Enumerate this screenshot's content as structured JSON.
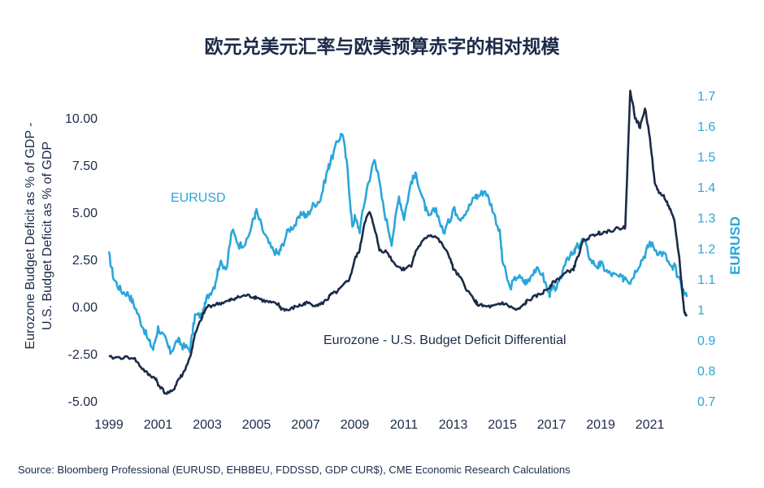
{
  "chart_data": {
    "type": "line",
    "title": "欧元兑美元汇率与欧美预算赤字的相对规模",
    "ylabel_left": [
      "Eurozone Budget Deficit as % of GDP -",
      "U.S. Budget Deficit as % of GDP"
    ],
    "ylabel_right": "EURUSD",
    "source": "Source: Bloomberg Professional (EURUSD, EHBBEU, FDDSSD, GDP CUR$), CME Economic Research Calculations",
    "x_ticks": [
      "1999",
      "2001",
      "2003",
      "2005",
      "2007",
      "2009",
      "2011",
      "2013",
      "2015",
      "2017",
      "2019",
      "2021"
    ],
    "xlim": [
      1999,
      2022.6
    ],
    "y_left_ticks": [
      "10.00",
      "7.50",
      "5.00",
      "2.50",
      "0.00",
      "-2.50",
      "-5.00"
    ],
    "y_left_ticks_values": [
      10,
      7.5,
      5,
      2.5,
      0,
      -2.5,
      -5
    ],
    "ylim_left": [
      -5,
      11.5
    ],
    "y_right_ticks": [
      "1.7",
      "1.6",
      "1.5",
      "1.4",
      "1.3",
      "1.2",
      "1.1",
      "1",
      "0.9",
      "0.8",
      "0.7"
    ],
    "y_right_ticks_values": [
      1.7,
      1.6,
      1.5,
      1.4,
      1.3,
      1.2,
      1.1,
      1.0,
      0.9,
      0.8,
      0.7
    ],
    "ylim_right": [
      0.7,
      1.72
    ],
    "colors": {
      "eurusd": "#2aa6d9",
      "deficit": "#1b2b48"
    },
    "series": [
      {
        "name": "EURUSD",
        "axis": "right",
        "x": [
          1999.0,
          1999.2,
          1999.5,
          1999.8,
          2000.0,
          2000.3,
          2000.6,
          2000.8,
          2001.0,
          2001.3,
          2001.5,
          2001.8,
          2002.0,
          2002.3,
          2002.5,
          2002.8,
          2003.0,
          2003.3,
          2003.5,
          2003.8,
          2004.0,
          2004.3,
          2004.6,
          2004.9,
          2005.0,
          2005.3,
          2005.6,
          2005.9,
          2006.0,
          2006.3,
          2006.6,
          2006.9,
          2007.0,
          2007.3,
          2007.6,
          2007.9,
          2008.0,
          2008.3,
          2008.5,
          2008.7,
          2008.9,
          2009.0,
          2009.2,
          2009.5,
          2009.8,
          2009.9,
          2010.2,
          2010.5,
          2010.8,
          2011.0,
          2011.3,
          2011.5,
          2011.8,
          2012.0,
          2012.3,
          2012.6,
          2012.9,
          2013.0,
          2013.3,
          2013.6,
          2013.9,
          2014.0,
          2014.3,
          2014.6,
          2014.9,
          2015.0,
          2015.3,
          2015.6,
          2015.9,
          2016.0,
          2016.3,
          2016.6,
          2016.9,
          2017.0,
          2017.3,
          2017.6,
          2017.9,
          2018.0,
          2018.3,
          2018.6,
          2018.9,
          2019.0,
          2019.3,
          2019.6,
          2019.9,
          2020.0,
          2020.2,
          2020.5,
          2020.8,
          2021.0,
          2021.3,
          2021.6,
          2021.9,
          2022.0,
          2022.3,
          2022.5
        ],
        "values": [
          1.18,
          1.1,
          1.06,
          1.05,
          1.02,
          0.96,
          0.9,
          0.87,
          0.94,
          0.9,
          0.86,
          0.9,
          0.88,
          0.87,
          0.98,
          0.98,
          1.04,
          1.08,
          1.15,
          1.14,
          1.26,
          1.21,
          1.22,
          1.3,
          1.32,
          1.25,
          1.2,
          1.18,
          1.2,
          1.26,
          1.28,
          1.32,
          1.3,
          1.34,
          1.36,
          1.46,
          1.48,
          1.55,
          1.58,
          1.46,
          1.27,
          1.3,
          1.26,
          1.4,
          1.49,
          1.46,
          1.32,
          1.22,
          1.37,
          1.3,
          1.42,
          1.44,
          1.35,
          1.3,
          1.33,
          1.25,
          1.3,
          1.33,
          1.3,
          1.33,
          1.37,
          1.37,
          1.39,
          1.33,
          1.25,
          1.16,
          1.07,
          1.11,
          1.09,
          1.09,
          1.13,
          1.12,
          1.05,
          1.06,
          1.08,
          1.17,
          1.18,
          1.2,
          1.23,
          1.16,
          1.14,
          1.15,
          1.12,
          1.11,
          1.1,
          1.11,
          1.09,
          1.14,
          1.18,
          1.22,
          1.19,
          1.18,
          1.13,
          1.14,
          1.07,
          1.04
        ]
      },
      {
        "name": "Eurozone - U.S. Budget Deficit Differential",
        "axis": "left",
        "x": [
          1999.0,
          1999.5,
          2000.0,
          2000.3,
          2000.6,
          2000.9,
          2001.0,
          2001.3,
          2001.6,
          2001.8,
          2002.0,
          2002.3,
          2002.5,
          2002.8,
          2003.0,
          2003.3,
          2003.6,
          2003.9,
          2004.0,
          2004.3,
          2004.6,
          2004.9,
          2005.0,
          2005.3,
          2005.6,
          2005.9,
          2006.0,
          2006.3,
          2006.6,
          2006.9,
          2007.0,
          2007.3,
          2007.6,
          2007.9,
          2008.0,
          2008.3,
          2008.6,
          2008.8,
          2009.0,
          2009.2,
          2009.4,
          2009.6,
          2009.8,
          2010.0,
          2010.3,
          2010.6,
          2010.9,
          2011.0,
          2011.3,
          2011.5,
          2011.8,
          2012.0,
          2012.3,
          2012.6,
          2012.9,
          2013.0,
          2013.3,
          2013.6,
          2013.9,
          2014.0,
          2014.3,
          2014.6,
          2014.9,
          2015.0,
          2015.3,
          2015.6,
          2015.9,
          2016.0,
          2016.3,
          2016.6,
          2016.9,
          2017.0,
          2017.3,
          2017.6,
          2017.9,
          2018.0,
          2018.3,
          2018.6,
          2018.9,
          2019.0,
          2019.3,
          2019.6,
          2019.9,
          2020.0,
          2020.2,
          2020.4,
          2020.6,
          2020.8,
          2021.0,
          2021.2,
          2021.4,
          2021.6,
          2021.8,
          2022.0,
          2022.2,
          2022.4,
          2022.5
        ],
        "values": [
          -2.7,
          -2.7,
          -2.7,
          -3.2,
          -3.6,
          -3.8,
          -4.1,
          -4.6,
          -4.5,
          -3.9,
          -3.6,
          -2.7,
          -1.5,
          -0.5,
          0.0,
          0.1,
          0.2,
          0.3,
          0.4,
          0.5,
          0.6,
          0.5,
          0.5,
          0.3,
          0.2,
          0.1,
          -0.1,
          -0.2,
          0.0,
          0.1,
          0.2,
          0.1,
          0.1,
          0.4,
          0.6,
          0.8,
          1.2,
          1.5,
          2.5,
          3.0,
          4.5,
          5.0,
          4.2,
          3.0,
          2.9,
          2.3,
          2.0,
          2.0,
          2.2,
          3.0,
          3.5,
          3.8,
          3.7,
          3.2,
          2.5,
          2.0,
          1.5,
          0.8,
          0.3,
          0.1,
          0.0,
          0.0,
          0.1,
          0.2,
          0.0,
          -0.2,
          0.1,
          0.3,
          0.5,
          0.7,
          1.0,
          1.2,
          1.5,
          1.8,
          2.0,
          2.4,
          3.5,
          3.7,
          3.9,
          3.9,
          4.0,
          4.1,
          4.2,
          4.2,
          11.5,
          10.0,
          9.5,
          10.5,
          9.0,
          6.5,
          6.0,
          5.8,
          5.2,
          4.5,
          2.5,
          -0.3,
          -0.5
        ]
      }
    ]
  }
}
